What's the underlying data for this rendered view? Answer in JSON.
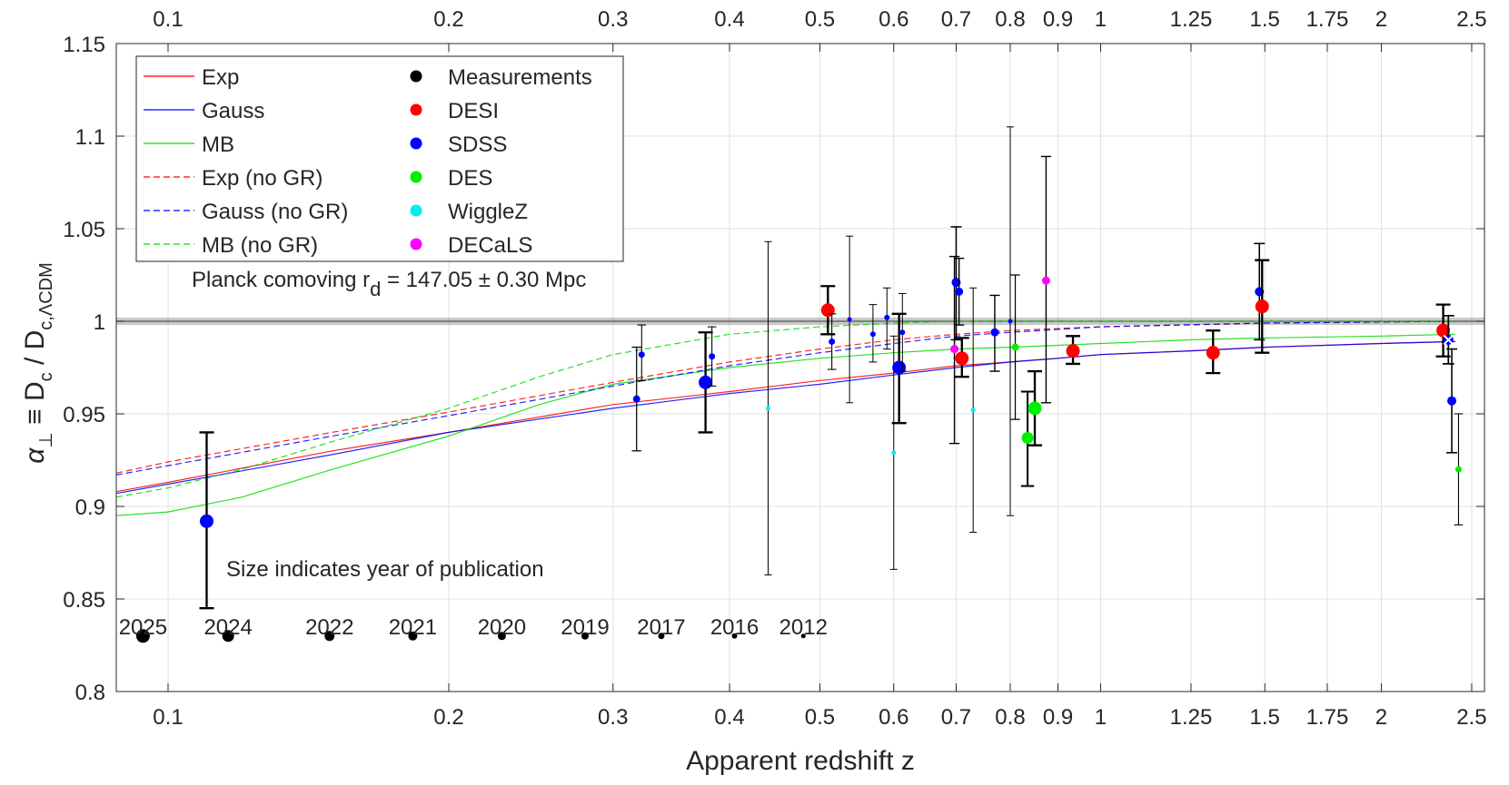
{
  "chart_data": {
    "type": "scatter",
    "x_scale": "log",
    "xlim": [
      0.088,
      2.58
    ],
    "ylim": [
      0.8,
      1.15
    ],
    "xlabel": "Apparent redshift z",
    "ylabel": {
      "main": "α",
      "sub1": "⊥",
      "mid": " ≡ D",
      "sub2": "c",
      "mid2": " / D",
      "sub3": "c,ΛCDM"
    },
    "x_ticks": [
      0.1,
      0.2,
      0.3,
      0.4,
      0.5,
      0.6,
      0.7,
      0.8,
      0.9,
      1,
      1.25,
      1.5,
      1.75,
      2,
      2.5
    ],
    "x_tick_labels": [
      "0.1",
      "0.2",
      "0.3",
      "0.4",
      "0.5",
      "0.6",
      "0.7",
      "0.8",
      "0.9",
      "1",
      "1.25",
      "1.5",
      "1.75",
      "2",
      "2.5"
    ],
    "y_ticks": [
      0.8,
      0.85,
      0.9,
      0.95,
      1.0,
      1.05,
      1.1,
      1.15
    ],
    "y_tick_labels": [
      "0.8",
      "0.85",
      "0.9",
      "0.95",
      "1",
      "1.05",
      "1.1",
      "1.15"
    ],
    "grid": true,
    "legend_placement": "top-left",
    "reference_line": {
      "y": 1.0,
      "band": [
        0.998,
        1.002
      ],
      "label": "Planck comoving r",
      "label_sub": "d",
      "label_rest": " = 147.05 ± 0.30 Mpc"
    },
    "colors": {
      "Exp": "#ff0000",
      "Gauss": "#0000ff",
      "MB": "#00dd00",
      "Measurements": "#000000",
      "DESI": "#ff0000",
      "SDSS": "#0000ff",
      "DES": "#00ee00",
      "WiggleZ": "#00eeee",
      "DECaLS": "#ff00ff"
    },
    "legend": {
      "lines": [
        {
          "label": "Exp",
          "model": "Exp",
          "dashed": false
        },
        {
          "label": "Gauss",
          "model": "Gauss",
          "dashed": false
        },
        {
          "label": "MB",
          "model": "MB",
          "dashed": false
        },
        {
          "label": "Exp (no GR)",
          "model": "Exp",
          "dashed": true
        },
        {
          "label": "Gauss (no GR)",
          "model": "Gauss",
          "dashed": true
        },
        {
          "label": "MB (no GR)",
          "model": "MB",
          "dashed": true
        }
      ],
      "markers": [
        "Measurements",
        "DESI",
        "SDSS",
        "DES",
        "WiggleZ",
        "DECaLS"
      ]
    },
    "series": [
      {
        "name": "Exp",
        "dashed": false,
        "x": [
          0.088,
          0.1,
          0.15,
          0.2,
          0.3,
          0.4,
          0.5,
          0.6,
          0.7,
          0.8,
          0.9,
          1.0,
          1.25,
          1.5,
          2.0,
          2.4
        ],
        "y": [
          0.908,
          0.913,
          0.93,
          0.94,
          0.955,
          0.962,
          0.968,
          0.972,
          0.976,
          0.978,
          0.98,
          0.982,
          0.984,
          0.986,
          0.988,
          0.989
        ]
      },
      {
        "name": "Gauss",
        "dashed": false,
        "x": [
          0.088,
          0.1,
          0.15,
          0.2,
          0.3,
          0.4,
          0.5,
          0.6,
          0.7,
          0.8,
          0.9,
          1.0,
          1.25,
          1.5,
          2.0,
          2.4
        ],
        "y": [
          0.907,
          0.912,
          0.928,
          0.94,
          0.953,
          0.961,
          0.966,
          0.971,
          0.975,
          0.978,
          0.98,
          0.982,
          0.984,
          0.986,
          0.988,
          0.989
        ]
      },
      {
        "name": "MB",
        "dashed": false,
        "x": [
          0.088,
          0.1,
          0.12,
          0.15,
          0.2,
          0.25,
          0.3,
          0.4,
          0.5,
          0.6,
          0.7,
          0.8,
          0.9,
          1.0,
          1.25,
          1.5,
          2.0,
          2.4
        ],
        "y": [
          0.895,
          0.897,
          0.905,
          0.92,
          0.938,
          0.955,
          0.966,
          0.975,
          0.98,
          0.983,
          0.985,
          0.986,
          0.987,
          0.988,
          0.99,
          0.991,
          0.992,
          0.993
        ]
      },
      {
        "name": "Exp (no GR)",
        "dashed": true,
        "x": [
          0.088,
          0.1,
          0.15,
          0.2,
          0.3,
          0.4,
          0.5,
          0.6,
          0.7,
          0.8,
          1.0,
          1.5,
          2.4
        ],
        "y": [
          0.918,
          0.924,
          0.94,
          0.951,
          0.967,
          0.978,
          0.985,
          0.99,
          0.993,
          0.995,
          0.997,
          0.999,
          1.0
        ]
      },
      {
        "name": "Gauss (no GR)",
        "dashed": true,
        "x": [
          0.088,
          0.1,
          0.15,
          0.2,
          0.3,
          0.4,
          0.5,
          0.6,
          0.7,
          0.8,
          1.0,
          1.5,
          2.4
        ],
        "y": [
          0.917,
          0.922,
          0.938,
          0.949,
          0.965,
          0.976,
          0.983,
          0.988,
          0.992,
          0.994,
          0.997,
          0.999,
          1.0
        ]
      },
      {
        "name": "MB (no GR)",
        "dashed": true,
        "x": [
          0.088,
          0.1,
          0.12,
          0.15,
          0.2,
          0.25,
          0.3,
          0.4,
          0.5,
          0.6,
          0.7,
          1.0,
          2.4
        ],
        "y": [
          0.905,
          0.91,
          0.92,
          0.935,
          0.953,
          0.97,
          0.982,
          0.993,
          0.997,
          0.999,
          1.0,
          1.0,
          1.0
        ]
      }
    ],
    "points": [
      {
        "z": 0.11,
        "y": 0.892,
        "lo": 0.845,
        "hi": 0.94,
        "survey": "SDSS",
        "year": 2025
      },
      {
        "z": 0.318,
        "y": 0.958,
        "lo": 0.93,
        "hi": 0.986,
        "survey": "SDSS",
        "year": 2019
      },
      {
        "z": 0.322,
        "y": 0.982,
        "lo": 0.968,
        "hi": 0.998,
        "survey": "SDSS",
        "year": 2017
      },
      {
        "z": 0.377,
        "y": 0.967,
        "lo": 0.94,
        "hi": 0.994,
        "survey": "SDSS",
        "year": 2025
      },
      {
        "z": 0.383,
        "y": 0.981,
        "lo": 0.965,
        "hi": 0.997,
        "survey": "SDSS",
        "year": 2017
      },
      {
        "z": 0.44,
        "y": 0.953,
        "lo": 0.863,
        "hi": 1.043,
        "survey": "WiggleZ",
        "year": 2012
      },
      {
        "z": 0.51,
        "y": 1.006,
        "lo": 0.993,
        "hi": 1.019,
        "survey": "DESI",
        "year": 2025
      },
      {
        "z": 0.515,
        "y": 0.989,
        "lo": 0.974,
        "hi": 1.004,
        "survey": "SDSS",
        "year": 2017
      },
      {
        "z": 0.538,
        "y": 1.001,
        "lo": 0.956,
        "hi": 1.046,
        "survey": "SDSS",
        "year": 2012
      },
      {
        "z": 0.57,
        "y": 0.993,
        "lo": 0.978,
        "hi": 1.009,
        "survey": "SDSS",
        "year": 2016
      },
      {
        "z": 0.59,
        "y": 1.002,
        "lo": 0.985,
        "hi": 1.018,
        "survey": "SDSS",
        "year": 2016
      },
      {
        "z": 0.6,
        "y": 0.929,
        "lo": 0.866,
        "hi": 0.992,
        "survey": "WiggleZ",
        "year": 2012
      },
      {
        "z": 0.608,
        "y": 0.975,
        "lo": 0.945,
        "hi": 1.004,
        "survey": "SDSS",
        "year": 2025
      },
      {
        "z": 0.613,
        "y": 0.994,
        "lo": 0.973,
        "hi": 1.015,
        "survey": "SDSS",
        "year": 2016
      },
      {
        "z": 0.697,
        "y": 0.985,
        "lo": 0.934,
        "hi": 1.035,
        "survey": "DECaLS",
        "year": 2020
      },
      {
        "z": 0.7,
        "y": 1.021,
        "lo": 0.99,
        "hi": 1.051,
        "survey": "SDSS",
        "year": 2021
      },
      {
        "z": 0.705,
        "y": 1.016,
        "lo": 0.998,
        "hi": 1.034,
        "survey": "SDSS",
        "year": 2020
      },
      {
        "z": 0.71,
        "y": 0.98,
        "lo": 0.97,
        "hi": 0.991,
        "survey": "DESI",
        "year": 2025
      },
      {
        "z": 0.73,
        "y": 0.952,
        "lo": 0.886,
        "hi": 1.018,
        "survey": "WiggleZ",
        "year": 2012
      },
      {
        "z": 0.77,
        "y": 0.994,
        "lo": 0.973,
        "hi": 1.014,
        "survey": "SDSS",
        "year": 2020
      },
      {
        "z": 0.8,
        "y": 1.0,
        "lo": 0.895,
        "hi": 1.105,
        "survey": "SDSS",
        "year": 2012
      },
      {
        "z": 0.81,
        "y": 0.986,
        "lo": 0.947,
        "hi": 1.025,
        "survey": "DES",
        "year": 2019
      },
      {
        "z": 0.835,
        "y": 0.937,
        "lo": 0.911,
        "hi": 0.962,
        "survey": "DES",
        "year": 2024
      },
      {
        "z": 0.85,
        "y": 0.953,
        "lo": 0.933,
        "hi": 0.973,
        "survey": "DES",
        "year": 2025
      },
      {
        "z": 0.874,
        "y": 1.022,
        "lo": 0.956,
        "hi": 1.089,
        "survey": "DECaLS",
        "year": 2020
      },
      {
        "z": 0.934,
        "y": 0.984,
        "lo": 0.977,
        "hi": 0.992,
        "survey": "DESI",
        "year": 2025
      },
      {
        "z": 1.32,
        "y": 0.983,
        "lo": 0.972,
        "hi": 0.995,
        "survey": "DESI",
        "year": 2025
      },
      {
        "z": 1.48,
        "y": 1.016,
        "lo": 0.99,
        "hi": 1.042,
        "survey": "SDSS",
        "year": 2021
      },
      {
        "z": 1.49,
        "y": 1.008,
        "lo": 0.983,
        "hi": 1.033,
        "survey": "DESI",
        "year": 2025
      },
      {
        "z": 2.33,
        "y": 0.995,
        "lo": 0.981,
        "hi": 1.009,
        "survey": "DESI",
        "year": 2025
      },
      {
        "z": 2.36,
        "y": 0.99,
        "lo": 0.977,
        "hi": 1.003,
        "survey": "SDSS",
        "year": 2022
      },
      {
        "z": 2.38,
        "y": 0.957,
        "lo": 0.929,
        "hi": 0.985,
        "survey": "SDSS",
        "year": 2021
      },
      {
        "z": 2.42,
        "y": 0.92,
        "lo": 0.89,
        "hi": 0.95,
        "survey": "DES",
        "year": 2017
      }
    ],
    "cross_marker": {
      "z": 2.36,
      "y": 0.99
    },
    "size_note": "Size indicates year of publication",
    "size_key": [
      {
        "year": "2025",
        "r": 7.5
      },
      {
        "year": "2024",
        "r": 6.5
      },
      {
        "year": "2022",
        "r": 5.5
      },
      {
        "year": "2021",
        "r": 5.0
      },
      {
        "year": "2020",
        "r": 4.5
      },
      {
        "year": "2019",
        "r": 4.0
      },
      {
        "year": "2017",
        "r": 3.5
      },
      {
        "year": "2016",
        "r": 3.0
      },
      {
        "year": "2012",
        "r": 2.5
      }
    ],
    "size_key_x": [
      0.094,
      0.116,
      0.149,
      0.183,
      0.228,
      0.28,
      0.338,
      0.405,
      0.48
    ]
  }
}
